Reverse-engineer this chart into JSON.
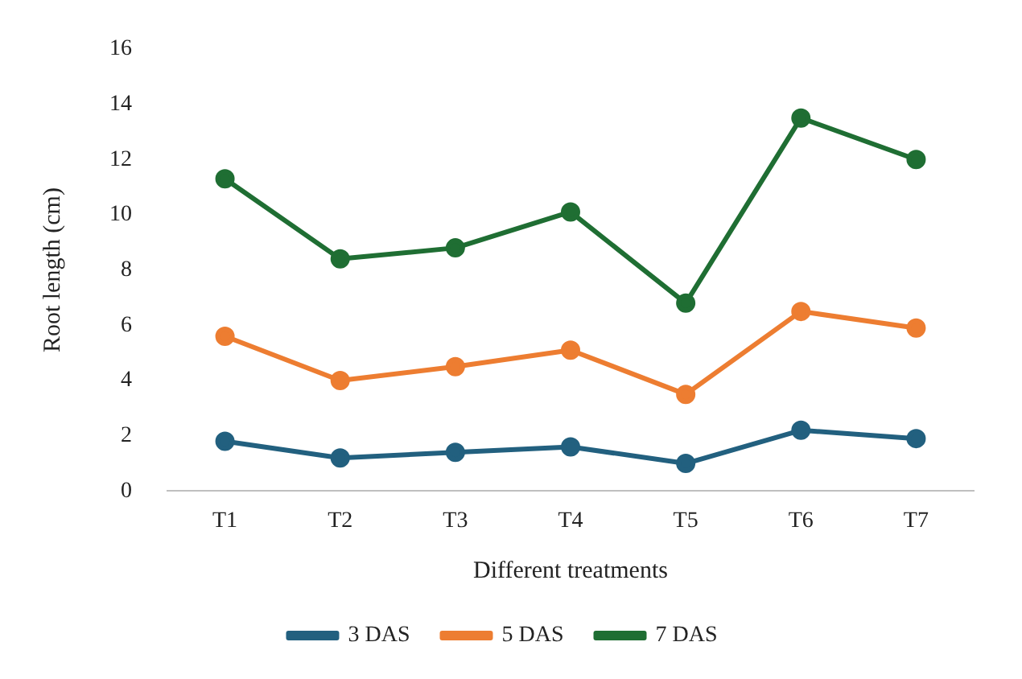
{
  "chart_data": {
    "type": "line",
    "xlabel": "Different treatments",
    "ylabel": "Root length (cm)",
    "categories": [
      "T1",
      "T2",
      "T3",
      "T4",
      "T5",
      "T6",
      "T7"
    ],
    "series": [
      {
        "name": "3 DAS",
        "color": "#22607f",
        "values": [
          1.8,
          1.2,
          1.4,
          1.6,
          1.0,
          2.2,
          1.9
        ]
      },
      {
        "name": "5 DAS",
        "color": "#ed7d31",
        "values": [
          5.6,
          4.0,
          4.5,
          5.1,
          3.5,
          6.5,
          5.9
        ]
      },
      {
        "name": "7 DAS",
        "color": "#1f6e33",
        "values": [
          11.3,
          8.4,
          8.8,
          10.1,
          6.8,
          13.5,
          12.0
        ]
      }
    ],
    "ylim": [
      0,
      16
    ],
    "yticks": [
      0,
      2,
      4,
      6,
      8,
      10,
      12,
      14,
      16
    ],
    "grid": false,
    "legend": "bottom",
    "marker": "circle",
    "line_style": "solid"
  }
}
